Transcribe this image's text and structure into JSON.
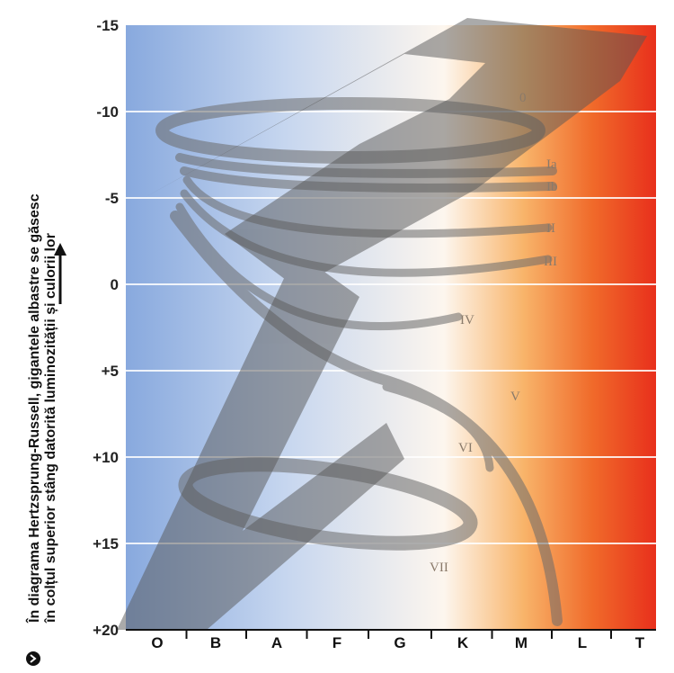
{
  "caption": {
    "line1": "În diagrama Hertzsprung-Russell, gigantele albastre se găsesc",
    "line2": "în colțul superior stâng datorită luminozității și culorii lor"
  },
  "y_axis": {
    "ticks": [
      "-15",
      "-10",
      "-5",
      "0",
      "+5",
      "+10",
      "+15",
      "+20"
    ]
  },
  "x_axis": {
    "classes": [
      "O",
      "B",
      "A",
      "F",
      "G",
      "K",
      "M",
      "L",
      "T"
    ]
  },
  "luminosity_classes": [
    "0",
    "Ia",
    "Ib",
    "II",
    "III",
    "IV",
    "V",
    "VI",
    "VII"
  ]
}
